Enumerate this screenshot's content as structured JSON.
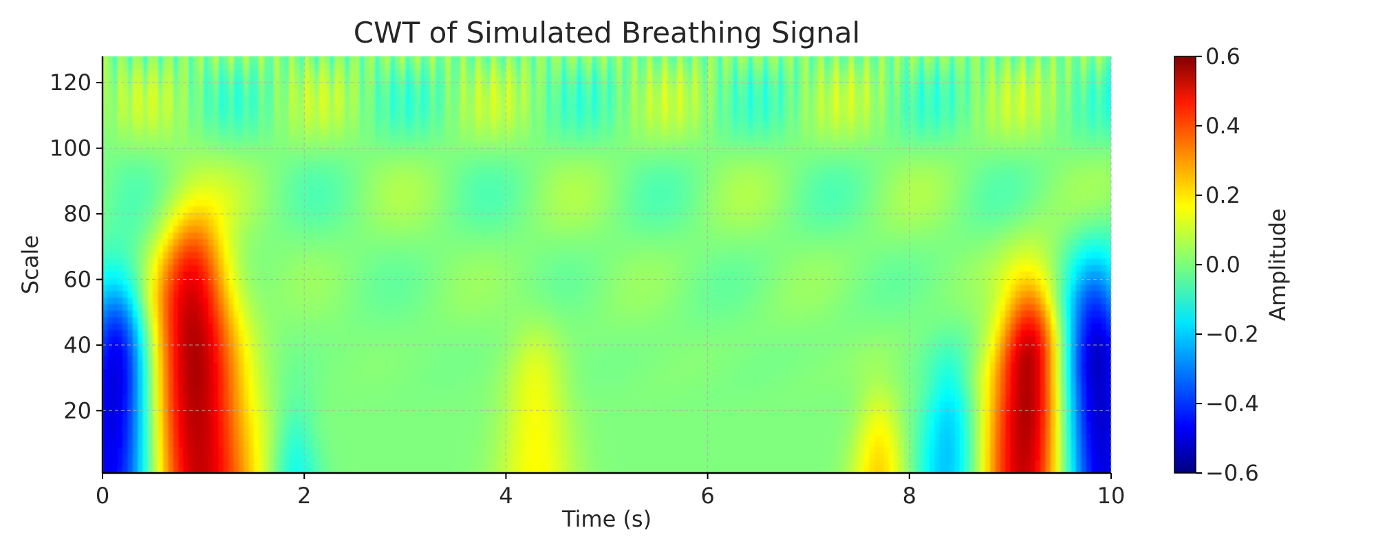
{
  "chart_data": {
    "type": "heatmap",
    "title": "CWT of Simulated Breathing Signal",
    "xlabel": "Time (s)",
    "ylabel": "Scale",
    "xlim": [
      0,
      10
    ],
    "ylim": [
      1,
      128
    ],
    "xticks": [
      0,
      2,
      4,
      6,
      8,
      10
    ],
    "xtick_labels": [
      "0",
      "2",
      "4",
      "6",
      "8",
      "10"
    ],
    "yticks": [
      20,
      40,
      60,
      80,
      100,
      120
    ],
    "ytick_labels": [
      "20",
      "40",
      "60",
      "80",
      "100",
      "120"
    ],
    "grid": true,
    "colormap": "jet",
    "colorbar": {
      "label": "Amplitude",
      "range": [
        -0.6,
        0.6
      ],
      "ticks": [
        0.6,
        0.4,
        0.2,
        0.0,
        -0.2,
        -0.4,
        -0.6
      ],
      "tick_labels": [
        "0.6",
        "0.4",
        "0.2",
        "0.0",
        "−0.2",
        "−0.4",
        "−0.6"
      ]
    },
    "features": [
      {
        "time": 0.15,
        "max_scale": 55,
        "amplitude": -0.55
      },
      {
        "time": 0.9,
        "max_scale": 75,
        "amplitude": 0.55
      },
      {
        "time": 1.9,
        "max_scale": 15,
        "amplitude": -0.18
      },
      {
        "time": 4.3,
        "max_scale": 40,
        "amplitude": 0.15
      },
      {
        "time": 7.7,
        "max_scale": 20,
        "amplitude": 0.22
      },
      {
        "time": 8.4,
        "max_scale": 30,
        "amplitude": -0.25
      },
      {
        "time": 9.2,
        "max_scale": 55,
        "amplitude": 0.6
      },
      {
        "time": 9.85,
        "max_scale": 60,
        "amplitude": -0.55
      }
    ]
  },
  "colors": {
    "text": "#262626",
    "grid": "#b0b0b0",
    "axis": "#000000"
  }
}
